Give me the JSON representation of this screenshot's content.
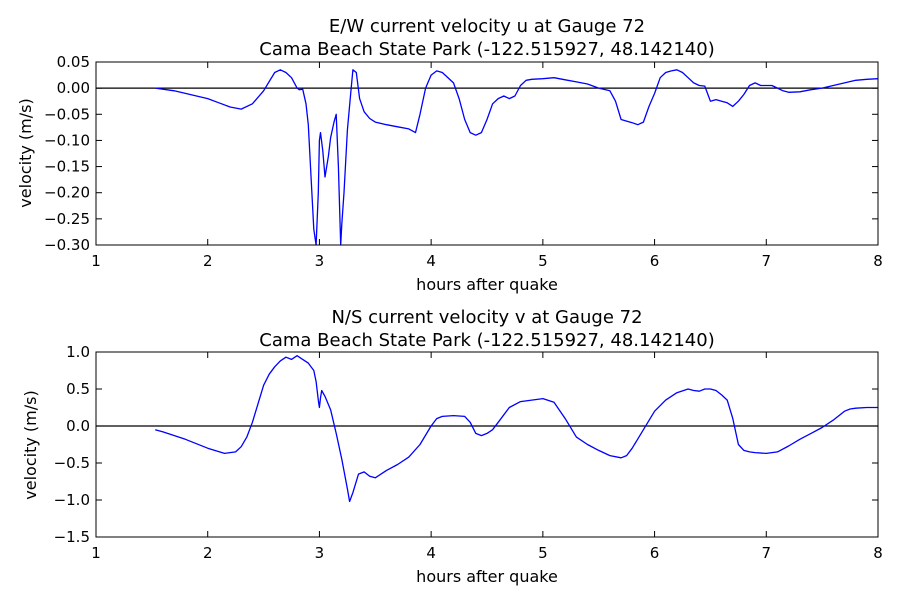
{
  "chart_data": [
    {
      "type": "line",
      "title": "E/W current velocity u at Gauge 72",
      "subtitle": "Cama Beach State Park  (-122.515927, 48.142140)",
      "xlabel": "hours after quake",
      "ylabel": "velocity (m/s)",
      "xlim": [
        1,
        8
      ],
      "ylim": [
        -0.3,
        0.05
      ],
      "xticks": [
        "1",
        "2",
        "3",
        "4",
        "5",
        "6",
        "7",
        "8"
      ],
      "yticks": [
        "0.05",
        "0.00",
        "−0.05",
        "−0.10",
        "−0.15",
        "−0.20",
        "−0.25",
        "−0.30"
      ],
      "reference_line_y": 0,
      "grid": false,
      "colors": {
        "series": "#0000ff",
        "reference": "#000000"
      },
      "series": [
        {
          "x": [
            1.53,
            1.6,
            1.7,
            1.8,
            1.9,
            2.0,
            2.1,
            2.2,
            2.3,
            2.4,
            2.5,
            2.6,
            2.65,
            2.7,
            2.75,
            2.8,
            2.82,
            2.85,
            2.88,
            2.9,
            2.92,
            2.95,
            2.97,
            2.99,
            3.0,
            3.01,
            3.03,
            3.05,
            3.08,
            3.1,
            3.13,
            3.15,
            3.17,
            3.19,
            3.2,
            3.22,
            3.25,
            3.28,
            3.3,
            3.33,
            3.36,
            3.4,
            3.45,
            3.5,
            3.6,
            3.7,
            3.8,
            3.86,
            3.9,
            3.95,
            4.0,
            4.05,
            4.1,
            4.2,
            4.25,
            4.3,
            4.35,
            4.4,
            4.45,
            4.5,
            4.55,
            4.6,
            4.65,
            4.7,
            4.75,
            4.8,
            4.85,
            4.9,
            5.0,
            5.1,
            5.2,
            5.3,
            5.4,
            5.5,
            5.6,
            5.65,
            5.7,
            5.75,
            5.8,
            5.85,
            5.9,
            5.95,
            6.0,
            6.05,
            6.1,
            6.15,
            6.2,
            6.25,
            6.3,
            6.35,
            6.4,
            6.45,
            6.5,
            6.55,
            6.6,
            6.65,
            6.7,
            6.75,
            6.8,
            6.85,
            6.9,
            6.95,
            7.0,
            7.05,
            7.1,
            7.15,
            7.2,
            7.3,
            7.4,
            7.5,
            7.6,
            7.7,
            7.8,
            7.9,
            8.0
          ],
          "values": [
            0.0,
            -0.002,
            -0.005,
            -0.01,
            -0.015,
            -0.02,
            -0.028,
            -0.036,
            -0.04,
            -0.03,
            -0.005,
            0.03,
            0.035,
            0.03,
            0.02,
            0.0,
            -0.003,
            -0.002,
            -0.03,
            -0.07,
            -0.15,
            -0.27,
            -0.3,
            -0.2,
            -0.1,
            -0.085,
            -0.12,
            -0.17,
            -0.13,
            -0.095,
            -0.065,
            -0.05,
            -0.15,
            -0.3,
            -0.26,
            -0.2,
            -0.08,
            -0.01,
            0.035,
            0.03,
            -0.02,
            -0.045,
            -0.058,
            -0.065,
            -0.07,
            -0.074,
            -0.078,
            -0.085,
            -0.05,
            0.0,
            0.025,
            0.033,
            0.03,
            0.01,
            -0.02,
            -0.06,
            -0.085,
            -0.09,
            -0.085,
            -0.06,
            -0.03,
            -0.02,
            -0.015,
            -0.02,
            -0.015,
            0.005,
            0.015,
            0.017,
            0.018,
            0.02,
            0.016,
            0.012,
            0.008,
            0.0,
            -0.005,
            -0.025,
            -0.06,
            -0.063,
            -0.066,
            -0.07,
            -0.065,
            -0.035,
            -0.01,
            0.02,
            0.03,
            0.033,
            0.035,
            0.03,
            0.02,
            0.01,
            0.005,
            0.004,
            -0.025,
            -0.022,
            -0.025,
            -0.028,
            -0.035,
            -0.025,
            -0.012,
            0.005,
            0.01,
            0.005,
            0.005,
            0.005,
            0.0,
            -0.005,
            -0.008,
            -0.007,
            -0.003,
            0.0,
            0.005,
            0.01,
            0.015,
            0.017,
            0.018
          ]
        }
      ]
    },
    {
      "type": "line",
      "title": "N/S current velocity v at Gauge 72",
      "subtitle": "Cama Beach State Park  (-122.515927, 48.142140)",
      "xlabel": "hours after quake",
      "ylabel": "velocity (m/s)",
      "xlim": [
        1,
        8
      ],
      "ylim": [
        -1.5,
        1.0
      ],
      "xticks": [
        "1",
        "2",
        "3",
        "4",
        "5",
        "6",
        "7",
        "8"
      ],
      "yticks": [
        "1.0",
        "0.5",
        "0.0",
        "−0.5",
        "−1.0",
        "−1.5"
      ],
      "reference_line_y": 0,
      "grid": false,
      "colors": {
        "series": "#0000ff",
        "reference": "#000000"
      },
      "series": [
        {
          "x": [
            1.53,
            1.6,
            1.8,
            2.0,
            2.15,
            2.25,
            2.3,
            2.35,
            2.4,
            2.45,
            2.5,
            2.55,
            2.6,
            2.65,
            2.7,
            2.75,
            2.8,
            2.85,
            2.9,
            2.95,
            2.97,
            2.99,
            3.0,
            3.01,
            3.02,
            3.05,
            3.1,
            3.15,
            3.2,
            3.25,
            3.27,
            3.3,
            3.35,
            3.4,
            3.45,
            3.5,
            3.6,
            3.7,
            3.8,
            3.9,
            4.0,
            4.05,
            4.1,
            4.2,
            4.3,
            4.35,
            4.4,
            4.45,
            4.5,
            4.55,
            4.6,
            4.7,
            4.8,
            4.9,
            5.0,
            5.1,
            5.2,
            5.3,
            5.4,
            5.5,
            5.6,
            5.7,
            5.75,
            5.8,
            5.9,
            6.0,
            6.1,
            6.2,
            6.3,
            6.35,
            6.4,
            6.45,
            6.5,
            6.55,
            6.6,
            6.65,
            6.7,
            6.75,
            6.8,
            6.85,
            6.9,
            7.0,
            7.1,
            7.2,
            7.3,
            7.4,
            7.5,
            7.6,
            7.7,
            7.75,
            7.8,
            7.9,
            8.0
          ],
          "values": [
            -0.05,
            -0.08,
            -0.18,
            -0.3,
            -0.37,
            -0.35,
            -0.28,
            -0.15,
            0.05,
            0.3,
            0.55,
            0.7,
            0.8,
            0.88,
            0.93,
            0.9,
            0.95,
            0.9,
            0.85,
            0.75,
            0.6,
            0.35,
            0.25,
            0.38,
            0.48,
            0.4,
            0.22,
            -0.1,
            -0.45,
            -0.85,
            -1.02,
            -0.9,
            -0.65,
            -0.62,
            -0.68,
            -0.7,
            -0.6,
            -0.52,
            -0.42,
            -0.25,
            0.0,
            0.1,
            0.13,
            0.14,
            0.13,
            0.05,
            -0.1,
            -0.13,
            -0.1,
            -0.05,
            0.05,
            0.25,
            0.33,
            0.35,
            0.37,
            0.32,
            0.1,
            -0.15,
            -0.25,
            -0.33,
            -0.4,
            -0.43,
            -0.4,
            -0.3,
            -0.05,
            0.2,
            0.35,
            0.45,
            0.5,
            0.48,
            0.47,
            0.5,
            0.5,
            0.48,
            0.42,
            0.35,
            0.1,
            -0.25,
            -0.33,
            -0.35,
            -0.36,
            -0.37,
            -0.35,
            -0.27,
            -0.18,
            -0.1,
            -0.02,
            0.08,
            0.2,
            0.23,
            0.24,
            0.25,
            0.25
          ]
        }
      ]
    }
  ]
}
